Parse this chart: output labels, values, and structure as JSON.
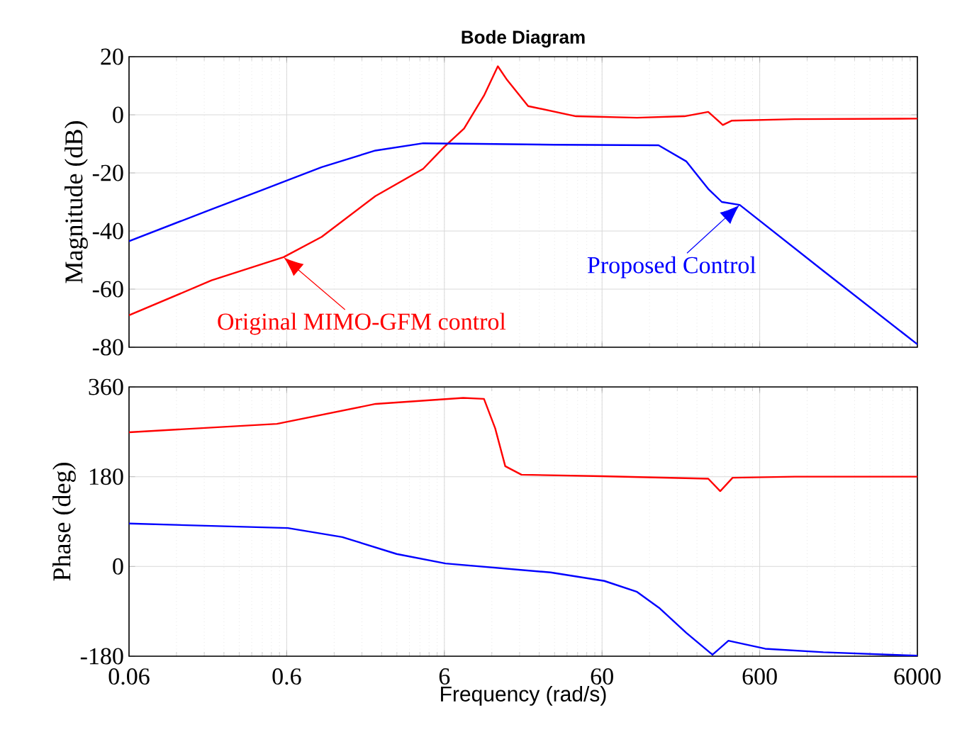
{
  "chart_data": [
    {
      "type": "line",
      "title": "Bode Diagram",
      "ylabel": "Magnitude (dB)",
      "log": "x",
      "grid": true,
      "tick_labels": "y",
      "xlim": [
        0.06,
        6000
      ],
      "xticks": [
        0.06,
        0.6,
        6,
        60,
        600,
        6000
      ],
      "ylim": [
        -80,
        20
      ],
      "yticks": [
        -80,
        -60,
        -40,
        -20,
        0,
        20
      ],
      "series": [
        {
          "color": "#ff0000",
          "x": [
            0.06,
            0.2,
            0.573,
            1,
            2.19,
            4.4,
            6,
            8,
            10.7,
            13.1,
            15,
            20.4,
            41,
            100,
            200,
            283,
            350,
            400,
            1000,
            6000
          ],
          "values": [
            -69,
            -57,
            -49,
            -42,
            -28,
            -18.6,
            -11,
            -4.7,
            6.6,
            16.7,
            12,
            3,
            -0.5,
            -1,
            -0.5,
            1,
            -3.5,
            -2,
            -1.5,
            -1.3
          ]
        },
        {
          "color": "#0000ff",
          "x": [
            0.06,
            0.2,
            0.414,
            1,
            2.19,
            4.4,
            10,
            30,
            137,
            205,
            283,
            345,
            448,
            1520,
            6000
          ],
          "values": [
            -43.5,
            -32.5,
            -26,
            -18,
            -12.3,
            -9.8,
            -10,
            -10.3,
            -10.5,
            -16,
            -25.5,
            -30,
            -31,
            -53.7,
            -79
          ]
        }
      ],
      "annotations": [
        {
          "text": "Original MIMO-GFM control",
          "x": 0.573,
          "y": -49
        },
        {
          "text": "Proposed Control",
          "x": 448,
          "y": -31
        }
      ]
    },
    {
      "type": "line",
      "xlabel": "Frequency (rad/s)",
      "ylabel": "Phase (deg)",
      "log": "x",
      "grid": true,
      "xlim": [
        0.06,
        6000
      ],
      "xticks": [
        0.06,
        0.6,
        6,
        60,
        600,
        6000
      ],
      "ylim": [
        -180,
        360
      ],
      "yticks": [
        -180,
        0,
        180,
        360
      ],
      "series": [
        {
          "color": "#ff0000",
          "x": [
            0.06,
            0.52,
            2.2,
            7.9,
            10.7,
            12.6,
            14.6,
            18.5,
            60,
            283,
            337,
            404,
            1000,
            6000
          ],
          "values": [
            269,
            286,
            326,
            338,
            336,
            277,
            201,
            184,
            181,
            176,
            151,
            178,
            180,
            180
          ]
        },
        {
          "color": "#0000ff",
          "x": [
            0.06,
            0.61,
            1.35,
            2.99,
            6.1,
            28.3,
            62,
            100,
            138,
            205,
            301,
            380,
            650,
            1520,
            6000
          ],
          "values": [
            86,
            77,
            59,
            25,
            6,
            -12,
            -29,
            -51,
            -83,
            -133,
            -177,
            -149,
            -165,
            -172,
            -179
          ]
        }
      ]
    }
  ]
}
